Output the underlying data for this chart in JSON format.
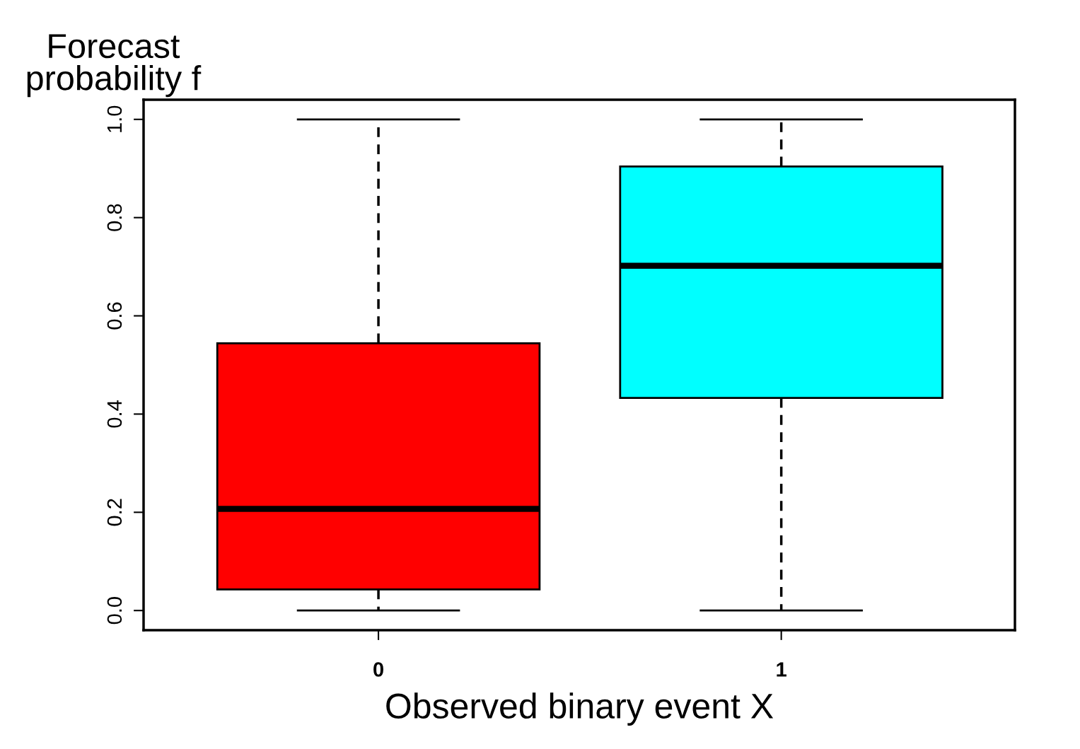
{
  "chart_data": {
    "type": "box",
    "xlabel": "Observed binary event X",
    "ylabel": "Forecast\nprobability f",
    "categories": [
      "0",
      "1"
    ],
    "boxes": [
      {
        "low": 0.0,
        "q1": 0.043,
        "median": 0.207,
        "q3": 0.544,
        "high": 1.0
      },
      {
        "low": 0.0,
        "q1": 0.433,
        "median": 0.702,
        "q3": 0.904,
        "high": 1.0
      }
    ],
    "colors": [
      "#ff0000",
      "#00ffff"
    ],
    "ylim": [
      -0.04,
      1.04
    ],
    "yticks": [
      {
        "value": 0.0,
        "label": "0.0"
      },
      {
        "value": 0.2,
        "label": "0.2"
      },
      {
        "value": 0.4,
        "label": "0.4"
      },
      {
        "value": 0.6,
        "label": "0.6"
      },
      {
        "value": 0.8,
        "label": "0.8"
      },
      {
        "value": 1.0,
        "label": "1.0"
      }
    ],
    "line_style": "dashed",
    "grid": false,
    "legend": false
  }
}
